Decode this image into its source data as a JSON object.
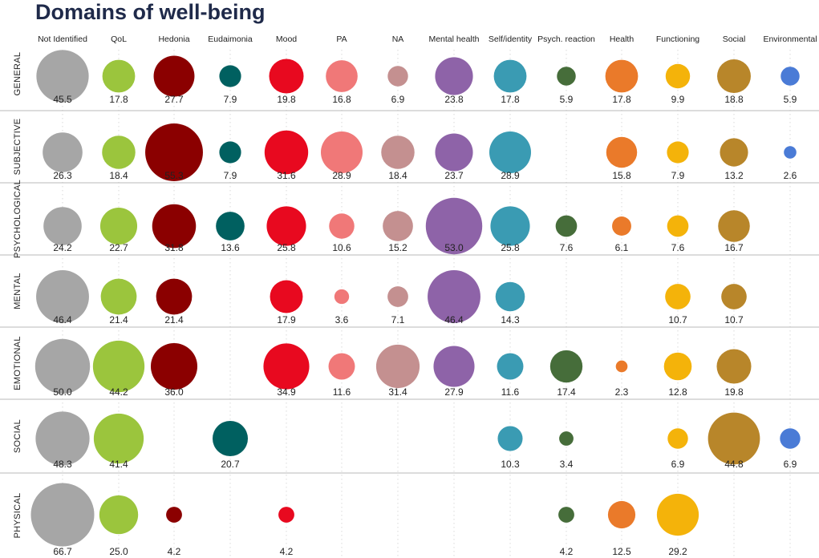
{
  "title": "Domains of well-being",
  "chart_data": {
    "type": "bubble-matrix",
    "title": "Domains of well-being",
    "columns": [
      {
        "name": "Not Identified",
        "color": "#a6a6a6"
      },
      {
        "name": "QoL",
        "color": "#9bc53d"
      },
      {
        "name": "Hedonia",
        "color": "#8b0000"
      },
      {
        "name": "Eudaimonia",
        "color": "#006060"
      },
      {
        "name": "Mood",
        "color": "#e8091f"
      },
      {
        "name": "PA",
        "color": "#f07878"
      },
      {
        "name": "NA",
        "color": "#c49090"
      },
      {
        "name": "Mental health",
        "color": "#8e63a8"
      },
      {
        "name": "Self/identity",
        "color": "#3a9bb3"
      },
      {
        "name": "Psych. reaction",
        "color": "#466d3a"
      },
      {
        "name": "Health",
        "color": "#ea7a2a"
      },
      {
        "name": "Functioning",
        "color": "#f4b30a"
      },
      {
        "name": "Social",
        "color": "#b8862a"
      },
      {
        "name": "Environmental",
        "color": "#4a7bd6"
      }
    ],
    "rows": [
      {
        "name": "GENERAL",
        "values": [
          45.5,
          17.8,
          27.7,
          7.9,
          19.8,
          16.8,
          6.9,
          23.8,
          17.8,
          5.9,
          17.8,
          9.9,
          18.8,
          5.9
        ]
      },
      {
        "name": "SUBJECTIVE",
        "values": [
          26.3,
          18.4,
          55.3,
          7.9,
          31.6,
          28.9,
          18.4,
          23.7,
          28.9,
          null,
          15.8,
          7.9,
          13.2,
          2.6
        ]
      },
      {
        "name": "PSYCHOLOGICAL",
        "values": [
          24.2,
          22.7,
          31.8,
          13.6,
          25.8,
          10.6,
          15.2,
          53.0,
          25.8,
          7.6,
          6.1,
          7.6,
          16.7,
          null
        ]
      },
      {
        "name": "MENTAL",
        "values": [
          46.4,
          21.4,
          21.4,
          null,
          17.9,
          3.6,
          7.1,
          46.4,
          14.3,
          null,
          null,
          10.7,
          10.7,
          null
        ]
      },
      {
        "name": "EMOTIONAL",
        "values": [
          50.0,
          44.2,
          36.0,
          null,
          34.9,
          11.6,
          31.4,
          27.9,
          11.6,
          17.4,
          2.3,
          12.8,
          19.8,
          null
        ]
      },
      {
        "name": "SOCIAL",
        "values": [
          48.3,
          41.4,
          null,
          20.7,
          null,
          null,
          null,
          null,
          10.3,
          3.4,
          null,
          6.9,
          44.8,
          6.9
        ]
      },
      {
        "name": "PHYSICAL",
        "values": [
          66.7,
          25.0,
          4.2,
          null,
          4.2,
          null,
          null,
          null,
          null,
          4.2,
          12.5,
          29.2,
          null,
          null
        ]
      }
    ]
  }
}
